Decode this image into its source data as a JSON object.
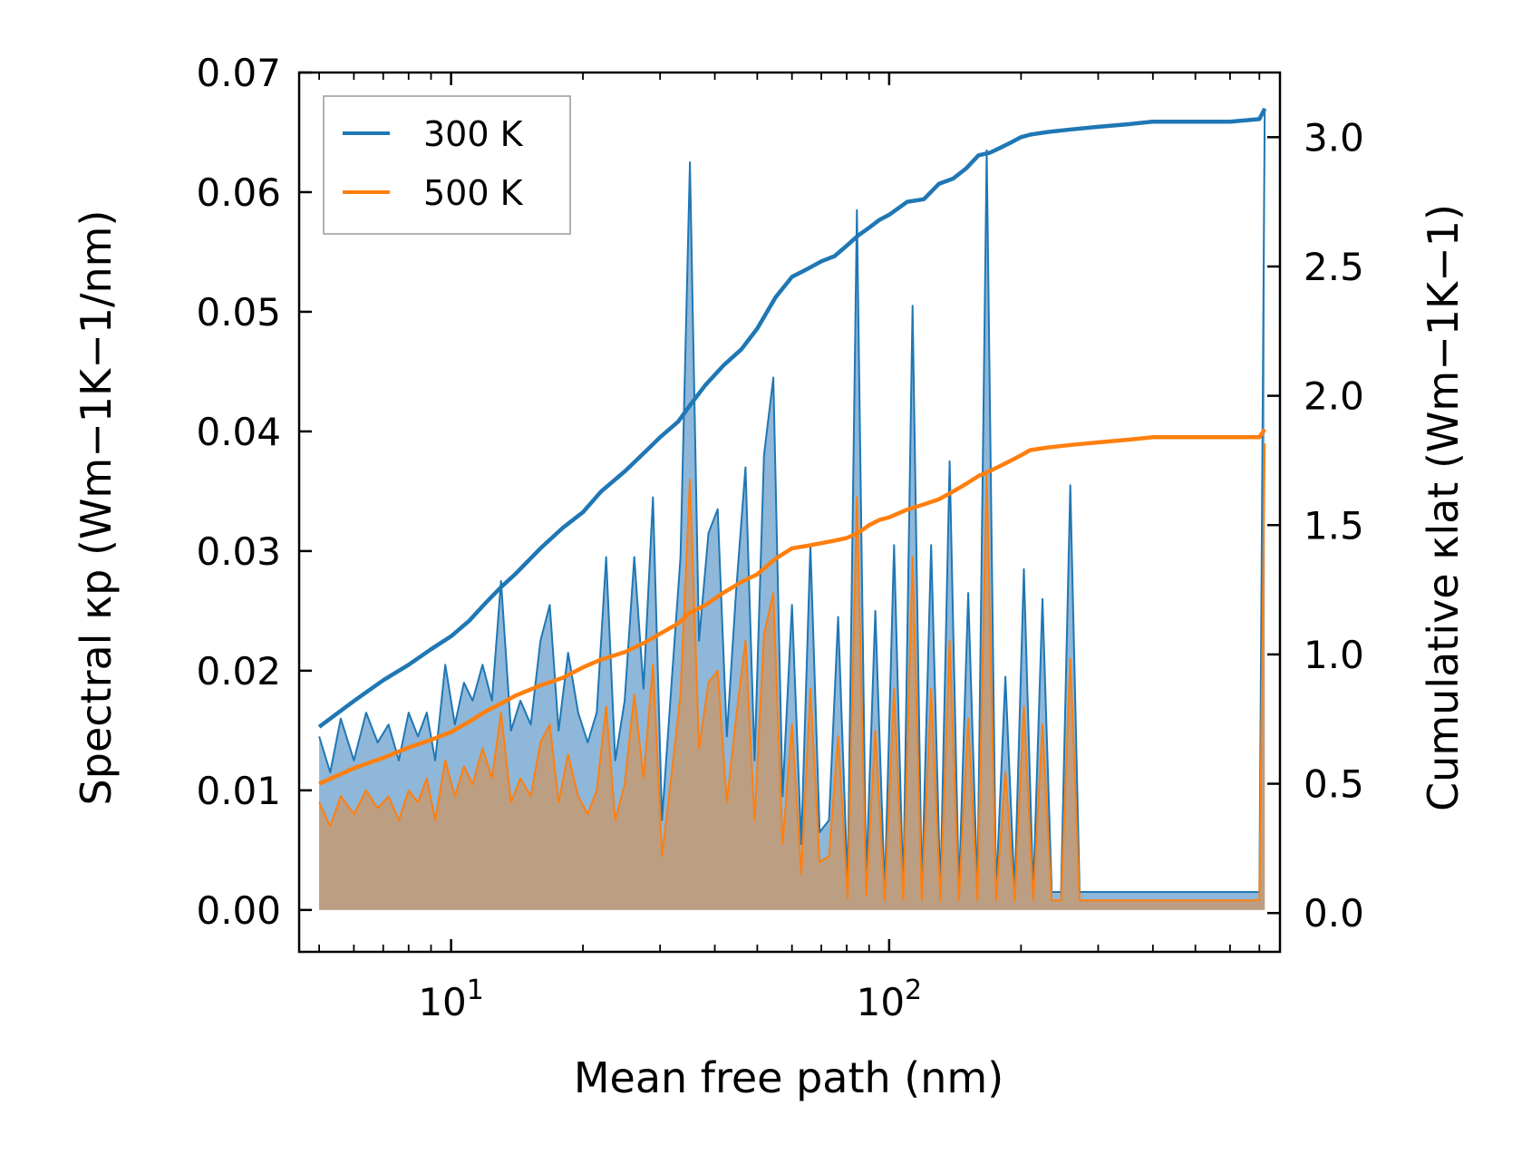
{
  "chart_data": {
    "type": "line",
    "x_scale": "log",
    "xlabel": "Mean free path (nm)",
    "ylabel_left": "Spectral κp (Wm−1K−1/nm)",
    "ylabel_right": "Cumulative κlat (Wm−1K−1)",
    "xlim": [
      4.5,
      780
    ],
    "ylim_left": [
      -0.0035,
      0.07
    ],
    "ylim_right": [
      -0.15,
      3.25
    ],
    "x_ticks": [
      {
        "value": 10,
        "label": "10",
        "exp": "1"
      },
      {
        "value": 100,
        "label": "10",
        "exp": "2"
      }
    ],
    "y_ticks_left": [
      "0.00",
      "0.01",
      "0.02",
      "0.03",
      "0.04",
      "0.05",
      "0.06",
      "0.07"
    ],
    "y_ticks_right": [
      "0.0",
      "0.5",
      "1.0",
      "1.5",
      "2.0",
      "2.5",
      "3.0"
    ],
    "legend": {
      "position": "upper-left",
      "entries": [
        "300 K",
        "500 K"
      ]
    },
    "colors": {
      "300K": "#1f77b4",
      "500K": "#ff7f0e",
      "fill300": "#7aaad2",
      "fill500": "#c49a72"
    },
    "spectral_300K": {
      "x": [
        5.0,
        5.3,
        5.6,
        6.0,
        6.4,
        6.8,
        7.2,
        7.6,
        8.0,
        8.4,
        8.8,
        9.2,
        9.7,
        10.2,
        10.7,
        11.2,
        11.8,
        12.4,
        13.0,
        13.7,
        14.4,
        15.2,
        16.0,
        16.8,
        17.6,
        18.5,
        19.5,
        20.5,
        21.5,
        22.6,
        23.7,
        24.9,
        26.2,
        27.5,
        28.9,
        30.3,
        31.8,
        33.4,
        35.1,
        36.8,
        38.7,
        40.6,
        42.6,
        44.7,
        47.0,
        49.3,
        51.8,
        54.4,
        57.1,
        60.0,
        63.0,
        66.1,
        69.4,
        72.9,
        76.5,
        80.4,
        84.4,
        88.6,
        93.0,
        97.7,
        102.6,
        107.7,
        113.1,
        118.7,
        124.7,
        130.9,
        137.4,
        144.3,
        151.5,
        159.1,
        167.0,
        175.4,
        184.2,
        193.4,
        203.0,
        213.2,
        223.8,
        235.0,
        246.8,
        259.1,
        272.1,
        285.7,
        300.0,
        315.0,
        330.7,
        347.2,
        364.6,
        382.8,
        700.0,
        720.0
      ],
      "values": [
        0.0145,
        0.0115,
        0.016,
        0.0125,
        0.0165,
        0.014,
        0.0155,
        0.0125,
        0.0165,
        0.0145,
        0.0165,
        0.0125,
        0.0205,
        0.0155,
        0.019,
        0.0175,
        0.0205,
        0.0175,
        0.0275,
        0.015,
        0.0175,
        0.0155,
        0.0225,
        0.0255,
        0.015,
        0.0215,
        0.0165,
        0.014,
        0.0165,
        0.0295,
        0.0125,
        0.0175,
        0.0295,
        0.0185,
        0.0345,
        0.0075,
        0.0185,
        0.0295,
        0.0625,
        0.0225,
        0.0315,
        0.0335,
        0.0145,
        0.0265,
        0.037,
        0.0125,
        0.038,
        0.0445,
        0.0095,
        0.0255,
        0.0055,
        0.0305,
        0.0065,
        0.0075,
        0.0245,
        0.002,
        0.0585,
        0.0025,
        0.025,
        0.0015,
        0.0305,
        0.0015,
        0.0505,
        0.0015,
        0.0305,
        0.0015,
        0.0375,
        0.0015,
        0.0265,
        0.0015,
        0.0635,
        0.0015,
        0.0195,
        0.0015,
        0.0285,
        0.0015,
        0.026,
        0.0015,
        0.0015,
        0.0355,
        0.0015,
        0.0015,
        0.0015,
        0.0015,
        0.0015,
        0.0015,
        0.0015,
        0.0015,
        0.0015,
        0.067
      ]
    },
    "spectral_500K": {
      "x": [
        5.0,
        5.3,
        5.6,
        6.0,
        6.4,
        6.8,
        7.2,
        7.6,
        8.0,
        8.4,
        8.8,
        9.2,
        9.7,
        10.2,
        10.7,
        11.2,
        11.8,
        12.4,
        13.0,
        13.7,
        14.4,
        15.2,
        16.0,
        16.8,
        17.6,
        18.5,
        19.5,
        20.5,
        21.5,
        22.6,
        23.7,
        24.9,
        26.2,
        27.5,
        28.9,
        30.3,
        31.8,
        33.4,
        35.1,
        36.8,
        38.7,
        40.6,
        42.6,
        44.7,
        47.0,
        49.3,
        51.8,
        54.4,
        57.1,
        60.0,
        63.0,
        66.1,
        69.4,
        72.9,
        76.5,
        80.4,
        84.4,
        88.6,
        93.0,
        97.7,
        102.6,
        107.7,
        113.1,
        118.7,
        124.7,
        130.9,
        137.4,
        144.3,
        151.5,
        159.1,
        167.0,
        175.4,
        184.2,
        193.4,
        203.0,
        213.2,
        223.8,
        235.0,
        246.8,
        259.1,
        272.1,
        285.7,
        300.0,
        315.0,
        330.7,
        347.2,
        364.6,
        382.8,
        700.0,
        720.0
      ],
      "values": [
        0.009,
        0.007,
        0.0095,
        0.008,
        0.01,
        0.0085,
        0.0095,
        0.0075,
        0.01,
        0.009,
        0.011,
        0.0075,
        0.0125,
        0.0095,
        0.012,
        0.0105,
        0.0135,
        0.011,
        0.0165,
        0.009,
        0.011,
        0.0095,
        0.014,
        0.0155,
        0.009,
        0.013,
        0.0095,
        0.008,
        0.01,
        0.017,
        0.0075,
        0.0105,
        0.018,
        0.011,
        0.0205,
        0.0045,
        0.011,
        0.018,
        0.036,
        0.0135,
        0.019,
        0.02,
        0.009,
        0.016,
        0.0225,
        0.0075,
        0.023,
        0.0265,
        0.0055,
        0.0155,
        0.003,
        0.0185,
        0.004,
        0.0045,
        0.0145,
        0.001,
        0.0345,
        0.0012,
        0.015,
        0.0008,
        0.0185,
        0.0008,
        0.0295,
        0.0008,
        0.0185,
        0.0008,
        0.0225,
        0.0008,
        0.016,
        0.0008,
        0.0365,
        0.0008,
        0.0115,
        0.0008,
        0.017,
        0.0008,
        0.0155,
        0.0008,
        0.0008,
        0.021,
        0.0008,
        0.0008,
        0.0008,
        0.0008,
        0.0008,
        0.0008,
        0.0008,
        0.0008,
        0.0008,
        0.039
      ]
    },
    "cumulative_300K": {
      "x": [
        5.0,
        6.0,
        7.0,
        8.0,
        9.0,
        10.0,
        11.0,
        12.0,
        13.0,
        14.0,
        16.0,
        18.0,
        20.0,
        22.0,
        25.0,
        28.0,
        30.0,
        33.0,
        35.0,
        38.0,
        42.0,
        46.0,
        50.0,
        55.0,
        60.0,
        65.0,
        70.0,
        75.0,
        80.0,
        85.0,
        90.0,
        95.0,
        100.0,
        110.0,
        120.0,
        130.0,
        140.0,
        150.0,
        160.0,
        170.0,
        180.0,
        190.0,
        200.0,
        210.0,
        230.0,
        260.0,
        300.0,
        350.0,
        400.0,
        500.0,
        600.0,
        700.0,
        720.0
      ],
      "values": [
        0.72,
        0.82,
        0.9,
        0.96,
        1.02,
        1.07,
        1.13,
        1.2,
        1.26,
        1.31,
        1.41,
        1.49,
        1.55,
        1.63,
        1.71,
        1.79,
        1.84,
        1.9,
        1.96,
        2.04,
        2.12,
        2.18,
        2.26,
        2.38,
        2.46,
        2.49,
        2.52,
        2.54,
        2.58,
        2.62,
        2.65,
        2.68,
        2.7,
        2.75,
        2.76,
        2.82,
        2.84,
        2.88,
        2.93,
        2.94,
        2.96,
        2.98,
        3.0,
        3.01,
        3.02,
        3.03,
        3.04,
        3.05,
        3.06,
        3.06,
        3.06,
        3.07,
        3.11
      ]
    },
    "cumulative_500K": {
      "x": [
        5.0,
        6.0,
        7.0,
        8.0,
        9.0,
        10.0,
        11.0,
        12.0,
        13.0,
        14.0,
        16.0,
        18.0,
        20.0,
        22.0,
        25.0,
        28.0,
        30.0,
        33.0,
        35.0,
        38.0,
        42.0,
        46.0,
        50.0,
        55.0,
        60.0,
        65.0,
        70.0,
        75.0,
        80.0,
        85.0,
        90.0,
        95.0,
        100.0,
        110.0,
        120.0,
        130.0,
        140.0,
        150.0,
        160.0,
        170.0,
        180.0,
        190.0,
        200.0,
        210.0,
        230.0,
        260.0,
        300.0,
        350.0,
        400.0,
        500.0,
        600.0,
        700.0,
        720.0
      ],
      "values": [
        0.5,
        0.56,
        0.6,
        0.64,
        0.67,
        0.7,
        0.74,
        0.78,
        0.81,
        0.84,
        0.88,
        0.91,
        0.95,
        0.98,
        1.01,
        1.05,
        1.08,
        1.12,
        1.16,
        1.19,
        1.24,
        1.28,
        1.31,
        1.37,
        1.41,
        1.42,
        1.43,
        1.44,
        1.45,
        1.47,
        1.5,
        1.52,
        1.53,
        1.56,
        1.58,
        1.6,
        1.63,
        1.66,
        1.69,
        1.71,
        1.73,
        1.75,
        1.77,
        1.79,
        1.8,
        1.81,
        1.82,
        1.83,
        1.84,
        1.84,
        1.84,
        1.84,
        1.87
      ]
    }
  }
}
